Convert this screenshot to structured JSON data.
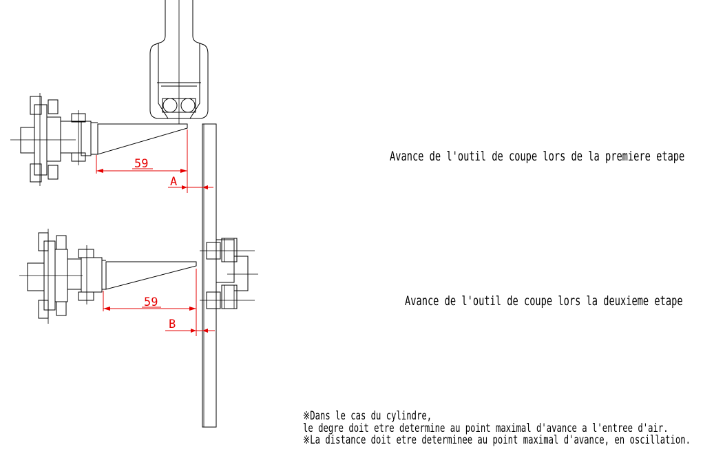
{
  "steps": {
    "first": "Avance de l'outil de coupe lors de la premiere etape",
    "second": "Avance de l'outil de coupe lors la deuxieme etape"
  },
  "dimensions": {
    "upper_distance": "59",
    "lower_distance": "59",
    "marker_a": "A",
    "marker_b": "B"
  },
  "notes": {
    "line1": "※Dans le cas du cylindre,",
    "line2": " le degre doit etre determine au point maximal d'avance a l'entree d'air.",
    "line3": "※La distance doit etre determinee au point maximal d'avance, en oscillation."
  },
  "colors": {
    "linework": "#000000",
    "dimension": "#e60000",
    "background": "#ffffff"
  }
}
